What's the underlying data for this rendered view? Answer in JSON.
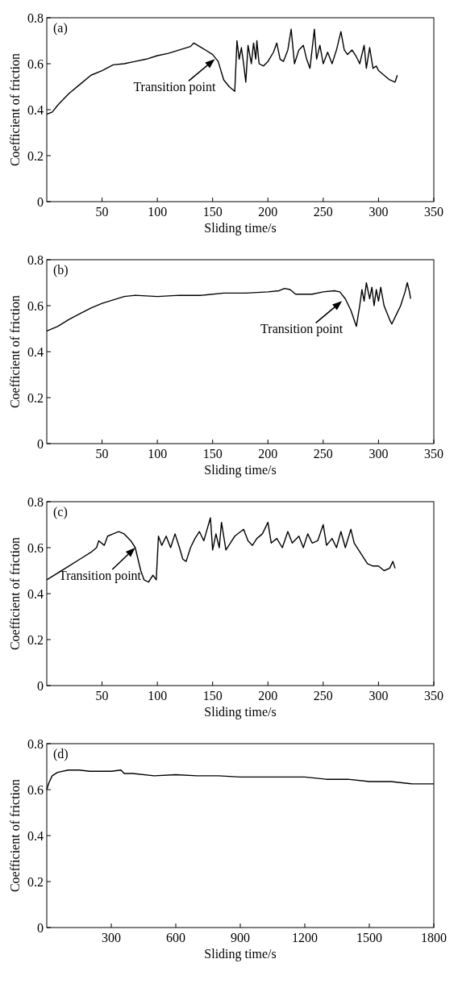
{
  "chart_data": [
    {
      "type": "line",
      "title": "(a)",
      "xlabel": "Sliding time/s",
      "ylabel": "Coefficient of friction",
      "xlim": [
        0,
        350
      ],
      "xticks": [
        50,
        100,
        150,
        200,
        250,
        300,
        350
      ],
      "ylim": [
        0,
        0.8
      ],
      "yticks": [
        0,
        0.2,
        0.4,
        0.6,
        0.8
      ],
      "grid": false,
      "marker": "none",
      "line_style": "solid",
      "annotations": [
        {
          "text": "Transition point",
          "x": 152,
          "y": 0.62
        }
      ],
      "series": [
        {
          "color": "#000000",
          "x": [
            0,
            5,
            10,
            20,
            30,
            40,
            50,
            60,
            70,
            80,
            90,
            100,
            110,
            120,
            130,
            133,
            140,
            150,
            155,
            160,
            165,
            170,
            172,
            174,
            176,
            178,
            180,
            182,
            185,
            187,
            189,
            190,
            192,
            196,
            200,
            205,
            208,
            211,
            214,
            218,
            221,
            224,
            228,
            232,
            235,
            238,
            242,
            244,
            247,
            250,
            254,
            258,
            262,
            266,
            269,
            272,
            276,
            280,
            283,
            287,
            289,
            292,
            295,
            298,
            300,
            305,
            310,
            315,
            317
          ],
          "values": [
            0.38,
            0.39,
            0.42,
            0.47,
            0.51,
            0.55,
            0.57,
            0.595,
            0.6,
            0.61,
            0.62,
            0.635,
            0.645,
            0.66,
            0.675,
            0.69,
            0.67,
            0.64,
            0.61,
            0.53,
            0.5,
            0.48,
            0.7,
            0.62,
            0.67,
            0.6,
            0.52,
            0.68,
            0.6,
            0.69,
            0.62,
            0.7,
            0.6,
            0.59,
            0.61,
            0.65,
            0.69,
            0.62,
            0.61,
            0.66,
            0.75,
            0.6,
            0.66,
            0.68,
            0.62,
            0.58,
            0.75,
            0.62,
            0.68,
            0.6,
            0.65,
            0.6,
            0.66,
            0.74,
            0.66,
            0.64,
            0.66,
            0.63,
            0.6,
            0.68,
            0.58,
            0.67,
            0.58,
            0.59,
            0.57,
            0.55,
            0.53,
            0.52,
            0.55
          ]
        }
      ]
    },
    {
      "type": "line",
      "title": "(b)",
      "xlabel": "Sliding time/s",
      "ylabel": "Coefficient of friction",
      "xlim": [
        0,
        350
      ],
      "xticks": [
        50,
        100,
        150,
        200,
        250,
        300,
        350
      ],
      "ylim": [
        0,
        0.8
      ],
      "yticks": [
        0,
        0.2,
        0.4,
        0.6,
        0.8
      ],
      "grid": false,
      "marker": "none",
      "line_style": "solid",
      "annotations": [
        {
          "text": "Transition point",
          "x": 267,
          "y": 0.62
        }
      ],
      "series": [
        {
          "color": "#000000",
          "x": [
            0,
            10,
            20,
            30,
            40,
            50,
            60,
            70,
            80,
            100,
            120,
            140,
            160,
            180,
            200,
            210,
            215,
            220,
            225,
            240,
            250,
            260,
            265,
            270,
            275,
            280,
            283,
            285,
            287,
            289,
            292,
            294,
            296,
            298,
            300,
            302,
            305,
            310,
            312,
            316,
            320,
            324,
            326,
            328,
            329
          ],
          "values": [
            0.49,
            0.51,
            0.54,
            0.565,
            0.59,
            0.61,
            0.625,
            0.64,
            0.645,
            0.64,
            0.645,
            0.645,
            0.655,
            0.655,
            0.66,
            0.665,
            0.675,
            0.67,
            0.65,
            0.65,
            0.66,
            0.665,
            0.66,
            0.63,
            0.58,
            0.51,
            0.6,
            0.67,
            0.62,
            0.7,
            0.63,
            0.68,
            0.6,
            0.67,
            0.62,
            0.68,
            0.6,
            0.54,
            0.52,
            0.56,
            0.6,
            0.66,
            0.7,
            0.66,
            0.63
          ]
        }
      ]
    },
    {
      "type": "line",
      "title": "(c)",
      "xlabel": "Sliding time/s",
      "ylabel": "Coefficient of friction",
      "xlim": [
        0,
        350
      ],
      "xticks": [
        50,
        100,
        150,
        200,
        250,
        300,
        350
      ],
      "ylim": [
        0,
        0.8
      ],
      "yticks": [
        0,
        0.2,
        0.4,
        0.6,
        0.8
      ],
      "grid": false,
      "marker": "none",
      "line_style": "solid",
      "annotations": [
        {
          "text": "Transition point",
          "x": 80,
          "y": 0.6
        }
      ],
      "series": [
        {
          "color": "#000000",
          "x": [
            0,
            10,
            20,
            30,
            40,
            45,
            47,
            52,
            55,
            60,
            65,
            70,
            76,
            80,
            85,
            88,
            92,
            96,
            99,
            101,
            104,
            108,
            112,
            116,
            120,
            123,
            126,
            130,
            134,
            138,
            142,
            148,
            150,
            153,
            156,
            158,
            162,
            166,
            170,
            178,
            182,
            186,
            190,
            195,
            200,
            203,
            208,
            213,
            218,
            222,
            228,
            232,
            236,
            240,
            245,
            250,
            253,
            258,
            262,
            266,
            270,
            275,
            278,
            282,
            286,
            290,
            295,
            300,
            305,
            310,
            313,
            315
          ],
          "values": [
            0.46,
            0.49,
            0.52,
            0.55,
            0.58,
            0.6,
            0.63,
            0.61,
            0.65,
            0.66,
            0.67,
            0.66,
            0.63,
            0.6,
            0.5,
            0.46,
            0.45,
            0.48,
            0.46,
            0.65,
            0.61,
            0.65,
            0.6,
            0.66,
            0.6,
            0.55,
            0.54,
            0.6,
            0.64,
            0.67,
            0.63,
            0.73,
            0.59,
            0.66,
            0.6,
            0.71,
            0.59,
            0.62,
            0.65,
            0.68,
            0.63,
            0.61,
            0.64,
            0.66,
            0.71,
            0.62,
            0.64,
            0.6,
            0.67,
            0.62,
            0.65,
            0.6,
            0.66,
            0.62,
            0.63,
            0.7,
            0.61,
            0.64,
            0.6,
            0.67,
            0.6,
            0.68,
            0.62,
            0.59,
            0.56,
            0.53,
            0.52,
            0.52,
            0.5,
            0.51,
            0.54,
            0.51
          ]
        }
      ]
    },
    {
      "type": "line",
      "title": "(d)",
      "xlabel": "Sliding time/s",
      "ylabel": "Coefficient of friction",
      "xlim": [
        0,
        1800
      ],
      "xticks": [
        300,
        600,
        900,
        1200,
        1500,
        1800
      ],
      "ylim": [
        0,
        0.8
      ],
      "yticks": [
        0,
        0.2,
        0.4,
        0.6,
        0.8
      ],
      "grid": false,
      "marker": "none",
      "line_style": "solid",
      "series": [
        {
          "color": "#000000",
          "x": [
            0,
            10,
            25,
            50,
            100,
            150,
            200,
            250,
            300,
            345,
            360,
            400,
            500,
            600,
            700,
            800,
            900,
            1000,
            1100,
            1200,
            1300,
            1400,
            1500,
            1600,
            1700,
            1800
          ],
          "values": [
            0.6,
            0.63,
            0.66,
            0.675,
            0.685,
            0.685,
            0.68,
            0.68,
            0.68,
            0.685,
            0.67,
            0.67,
            0.66,
            0.665,
            0.66,
            0.66,
            0.655,
            0.655,
            0.655,
            0.655,
            0.645,
            0.645,
            0.635,
            0.635,
            0.625,
            0.625
          ]
        }
      ]
    }
  ]
}
